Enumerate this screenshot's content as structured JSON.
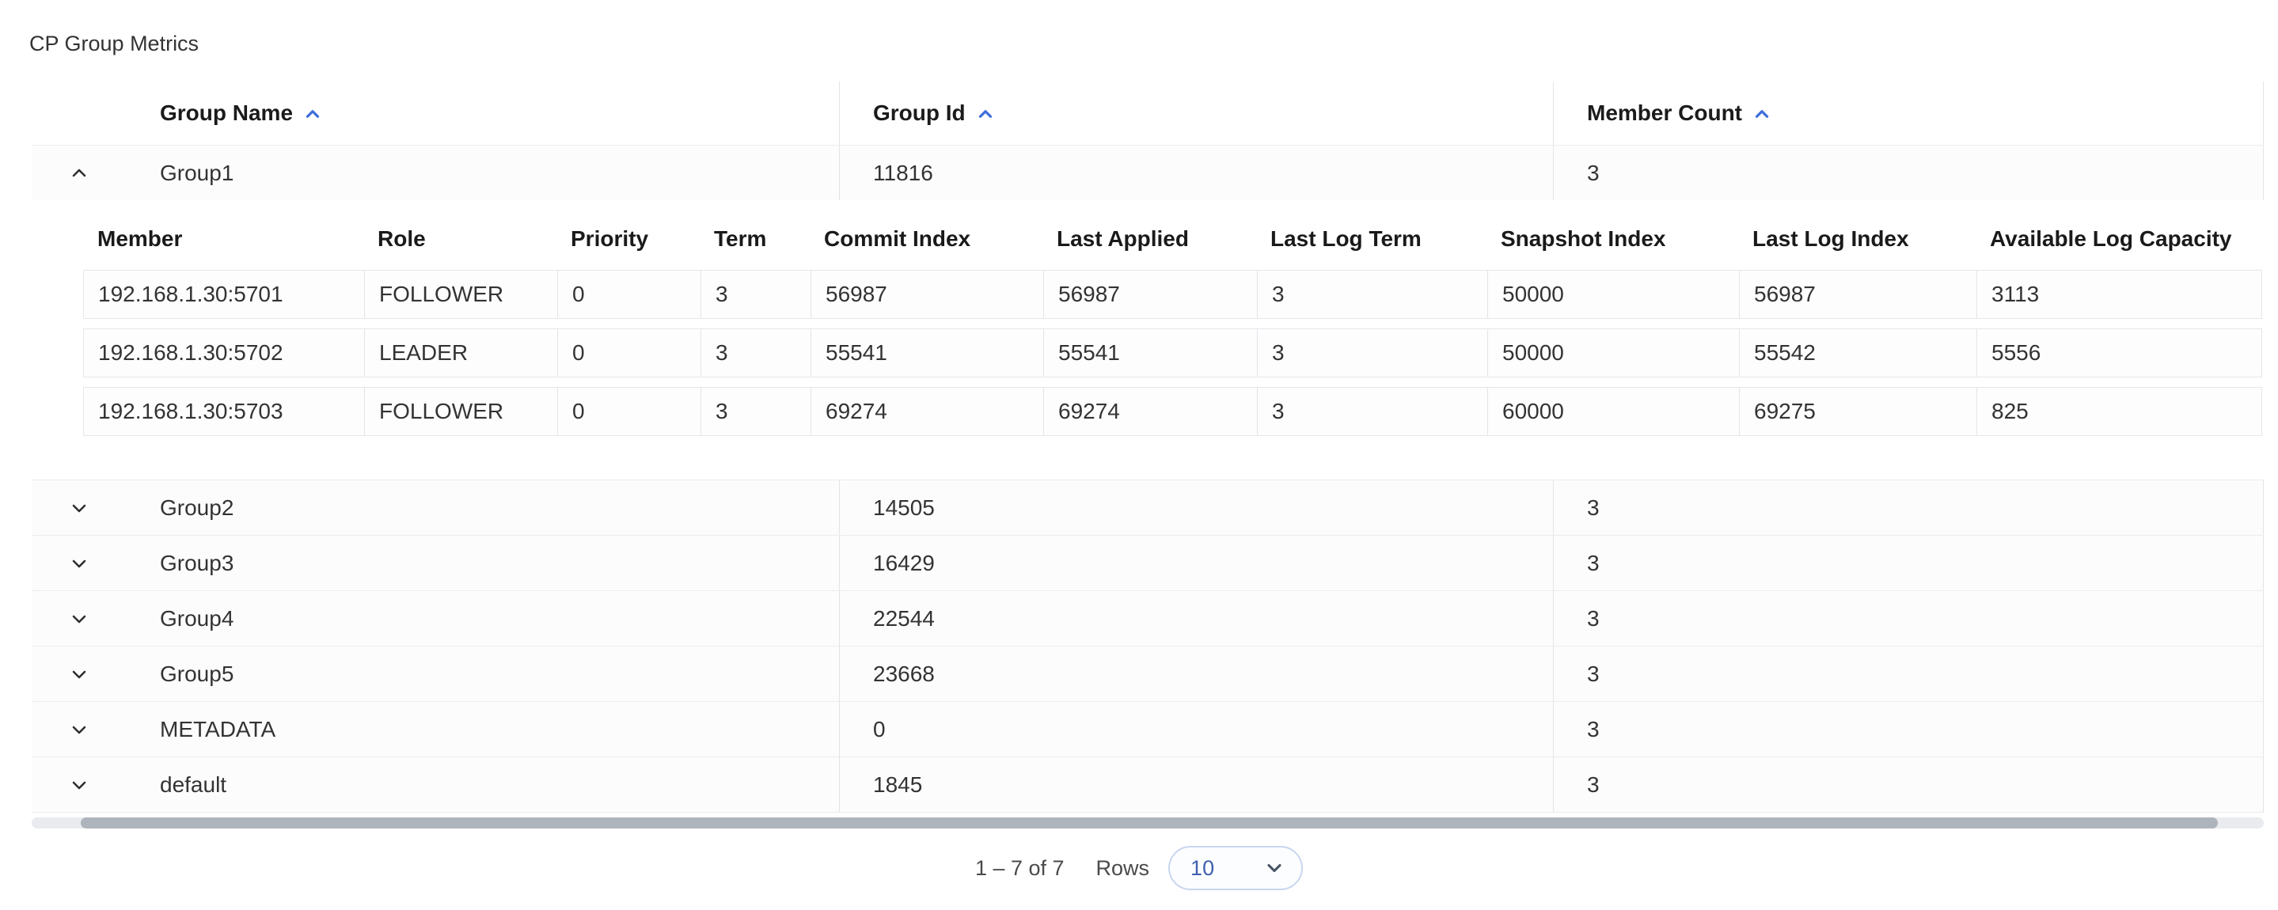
{
  "page": {
    "title": "CP Group Metrics"
  },
  "colors": {
    "sort_icon": "#3d6edb",
    "scrollbar_thumb": "#aeb4bc",
    "select_border": "#c9d6ee",
    "select_text": "#3f5fae",
    "row_separator": "#ededf0"
  },
  "table": {
    "columns": [
      {
        "label": "Group Name",
        "sort": "asc"
      },
      {
        "label": "Group Id",
        "sort": "asc"
      },
      {
        "label": "Member Count",
        "sort": "asc"
      }
    ],
    "groups": [
      {
        "name": "Group1",
        "group_id": "11816",
        "member_count": "3",
        "expanded": true
      },
      {
        "name": "Group2",
        "group_id": "14505",
        "member_count": "3",
        "expanded": false
      },
      {
        "name": "Group3",
        "group_id": "16429",
        "member_count": "3",
        "expanded": false
      },
      {
        "name": "Group4",
        "group_id": "22544",
        "member_count": "3",
        "expanded": false
      },
      {
        "name": "Group5",
        "group_id": "23668",
        "member_count": "3",
        "expanded": false
      },
      {
        "name": "METADATA",
        "group_id": "0",
        "member_count": "3",
        "expanded": false
      },
      {
        "name": "default",
        "group_id": "1845",
        "member_count": "3",
        "expanded": false
      }
    ]
  },
  "member_table": {
    "columns": [
      "Member",
      "Role",
      "Priority",
      "Term",
      "Commit Index",
      "Last Applied",
      "Last Log Term",
      "Snapshot Index",
      "Last Log Index",
      "Available Log Capacity"
    ],
    "rows": [
      [
        "192.168.1.30:5701",
        "FOLLOWER",
        "0",
        "3",
        "56987",
        "56987",
        "3",
        "50000",
        "56987",
        "3113"
      ],
      [
        "192.168.1.30:5702",
        "LEADER",
        "0",
        "3",
        "55541",
        "55541",
        "3",
        "50000",
        "55542",
        "5556"
      ],
      [
        "192.168.1.30:5703",
        "FOLLOWER",
        "0",
        "3",
        "69274",
        "69274",
        "3",
        "60000",
        "69275",
        "825"
      ]
    ]
  },
  "pagination": {
    "range_label": "1 – 7 of 7",
    "rows_label": "Rows",
    "page_size": "10"
  }
}
